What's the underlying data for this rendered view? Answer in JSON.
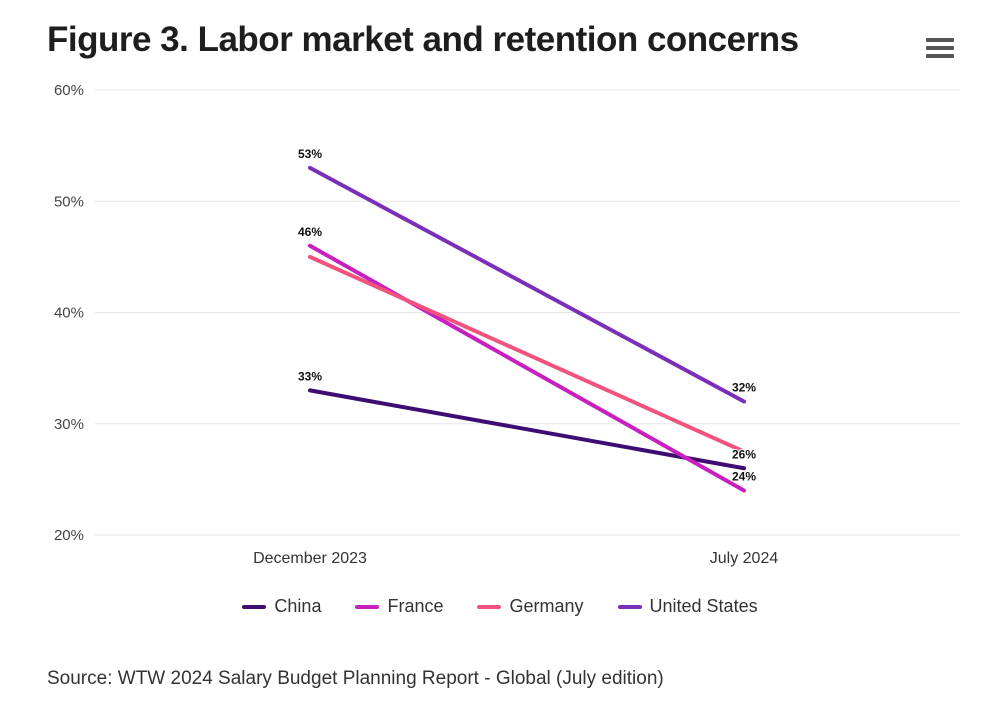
{
  "header": {
    "title": "Figure 3. Labor market and retention concerns",
    "menu_icon": "hamburger-menu-icon"
  },
  "source": "Source: WTW 2024 Salary Budget Planning Report - Global (July edition)",
  "chart_data": {
    "type": "line",
    "title": "Figure 3. Labor market and retention concerns",
    "xlabel": "",
    "ylabel": "",
    "categories": [
      "December 2023",
      "July 2024"
    ],
    "ylim": [
      20,
      60
    ],
    "yticks": [
      20,
      30,
      40,
      50,
      60
    ],
    "ytick_labels": [
      "20%",
      "30%",
      "40%",
      "50%",
      "60%"
    ],
    "grid": true,
    "legend_position": "bottom-center",
    "series": [
      {
        "name": "China",
        "color": "#3d0d73",
        "values": [
          33,
          26
        ],
        "labels": [
          "33%",
          "26%"
        ]
      },
      {
        "name": "France",
        "color": "#c81fc1",
        "values": [
          46,
          24
        ],
        "labels": [
          "46%",
          "24%"
        ]
      },
      {
        "name": "Germany",
        "color": "#f0547e",
        "values": [
          45,
          27.5
        ],
        "labels": [
          null,
          null
        ]
      },
      {
        "name": "United States",
        "color": "#7b2fb8",
        "values": [
          53,
          32
        ],
        "labels": [
          "53%",
          "32%"
        ]
      }
    ]
  }
}
